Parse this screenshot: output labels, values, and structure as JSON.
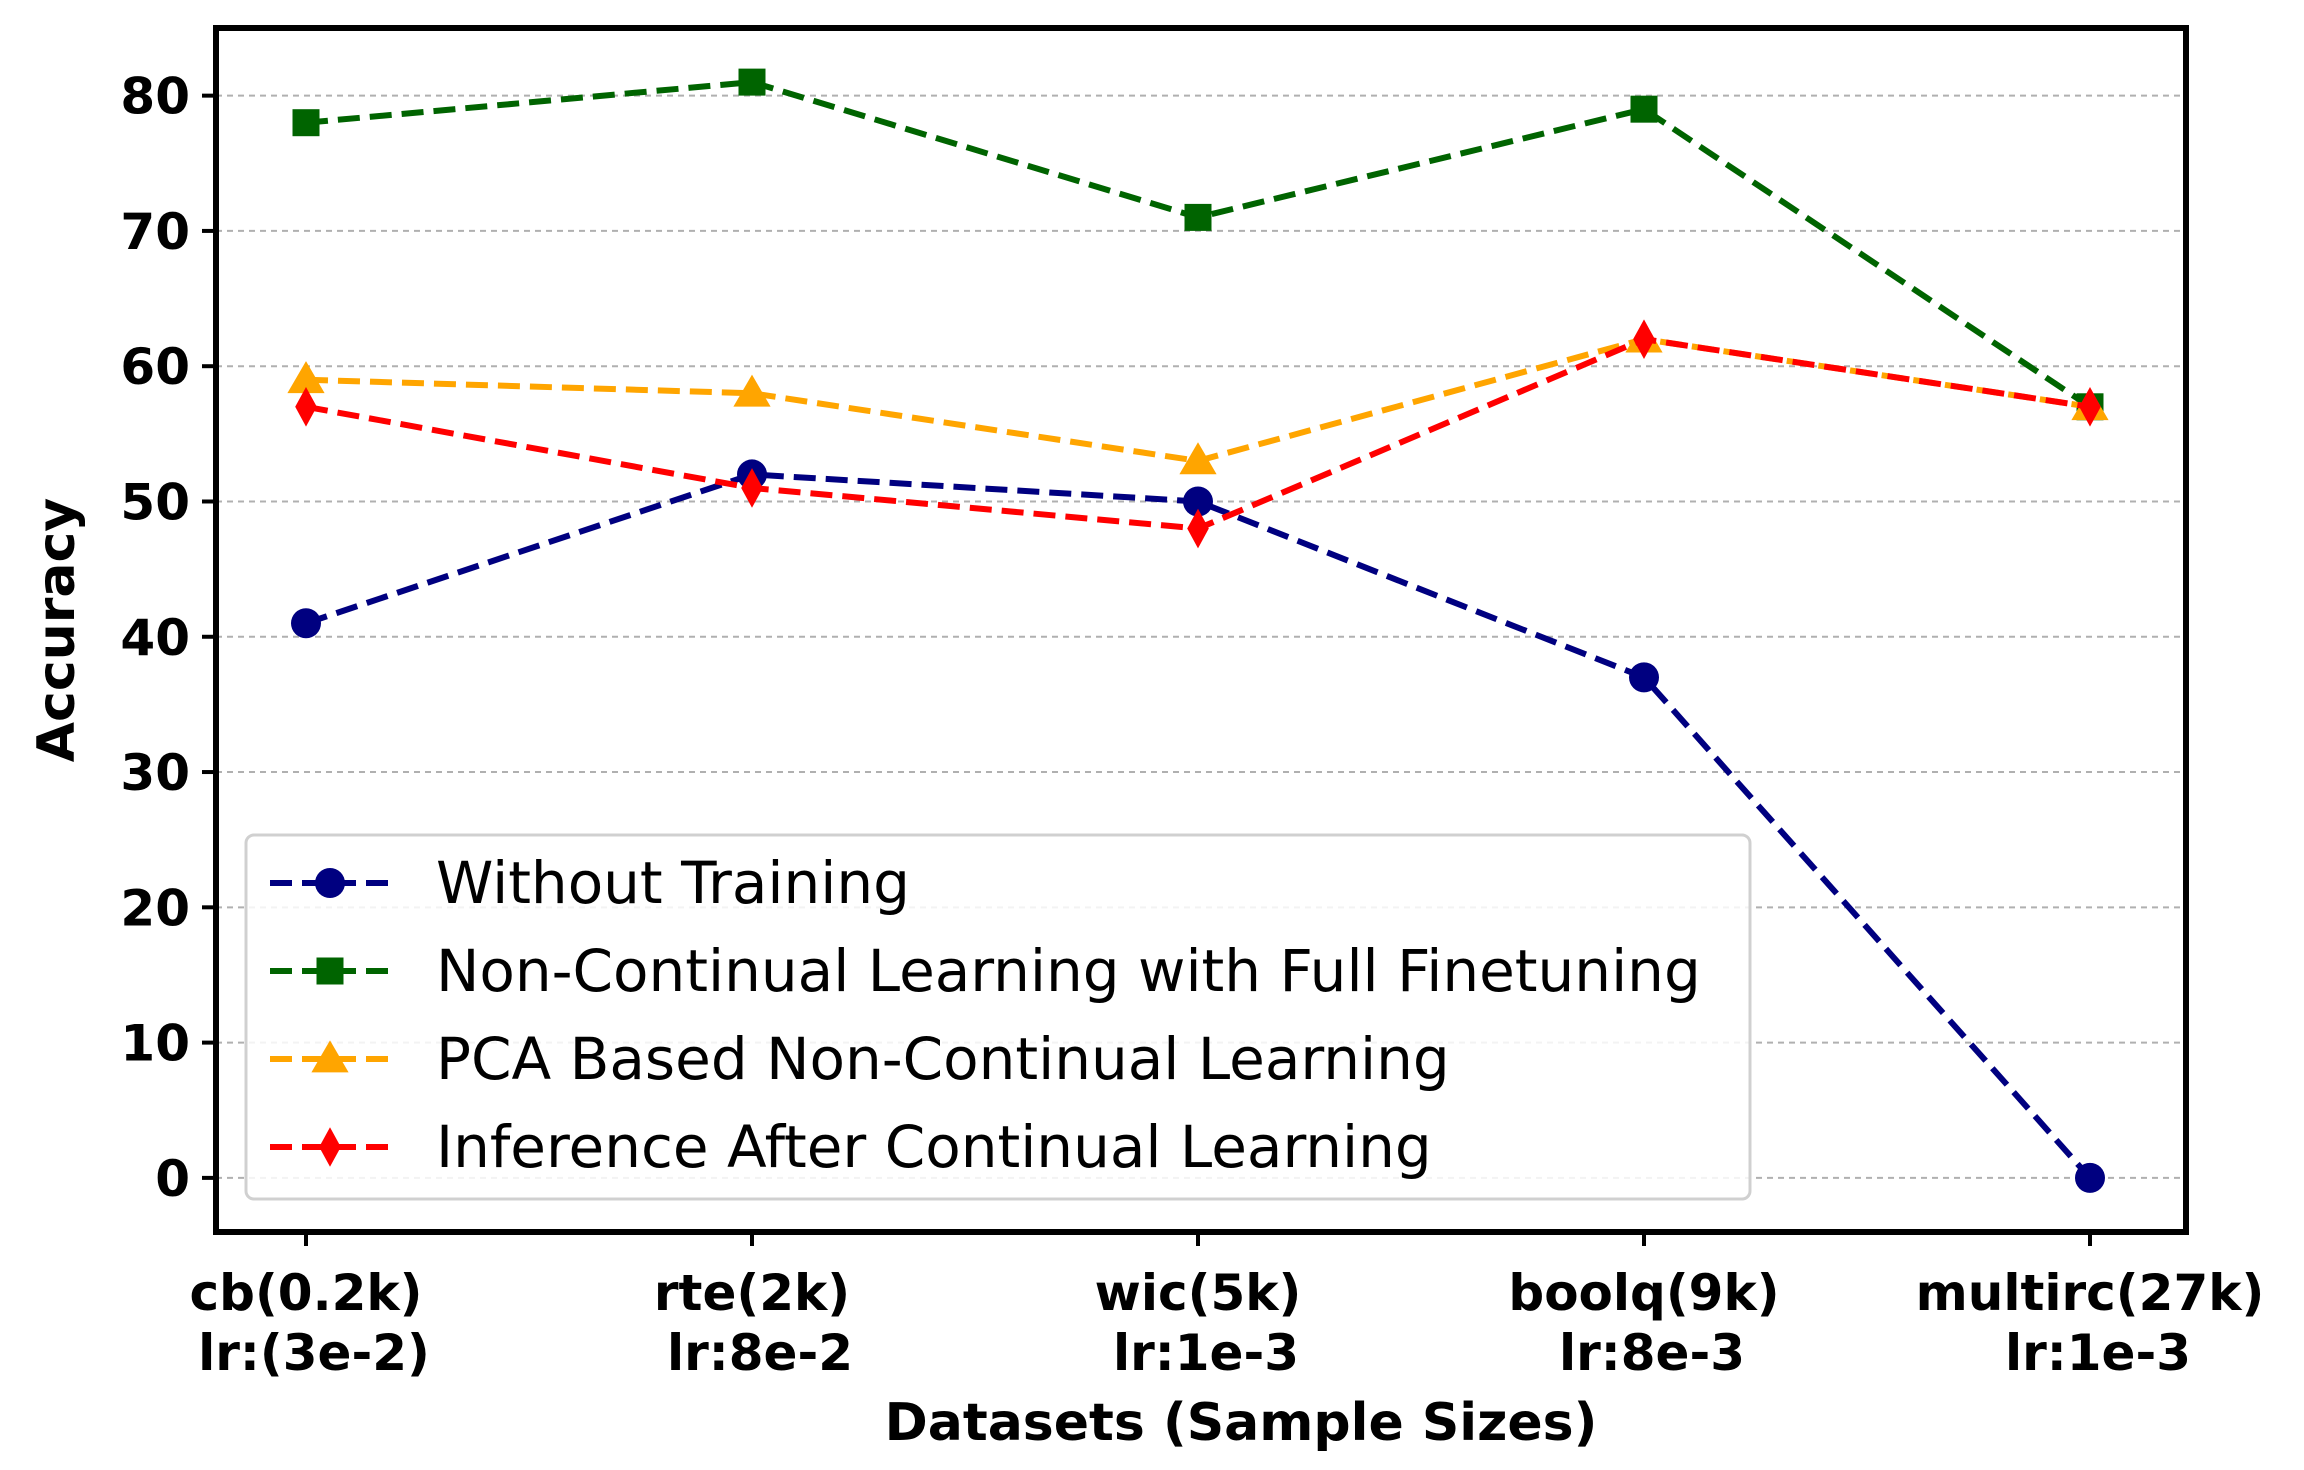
{
  "chart_data": {
    "type": "line",
    "title": "",
    "xlabel": "Datasets (Sample Sizes)",
    "ylabel": "Accuracy",
    "ylim": [
      -4,
      85
    ],
    "yticks": [
      0,
      10,
      20,
      30,
      40,
      50,
      60,
      70,
      80
    ],
    "grid": "horizontal dashed",
    "legend_position": "lower-left",
    "categories": [
      {
        "line1": "cb(0.2k)",
        "line2": "lr:(3e-2)"
      },
      {
        "line1": "rte(2k)",
        "line2": "lr:8e-2"
      },
      {
        "line1": "wic(5k)",
        "line2": "lr:1e-3"
      },
      {
        "line1": "boolq(9k)",
        "line2": "lr:8e-3"
      },
      {
        "line1": "multirc(27k)",
        "line2": "lr:1e-3"
      }
    ],
    "series": [
      {
        "name": "Without Training",
        "color": "#000080",
        "marker": "circle",
        "values": [
          41,
          52,
          50,
          37,
          0
        ]
      },
      {
        "name": "Non-Continual Learning with Full Finetuning",
        "color": "#006400",
        "marker": "square",
        "values": [
          78,
          81,
          71,
          79,
          57
        ]
      },
      {
        "name": "PCA Based Non-Continual Learning",
        "color": "#FFA500",
        "marker": "triangle",
        "values": [
          59,
          58,
          53,
          62,
          57
        ]
      },
      {
        "name": "Inference After Continual Learning",
        "color": "#FF0000",
        "marker": "diamond",
        "values": [
          57,
          51,
          48,
          62,
          57
        ]
      }
    ]
  }
}
